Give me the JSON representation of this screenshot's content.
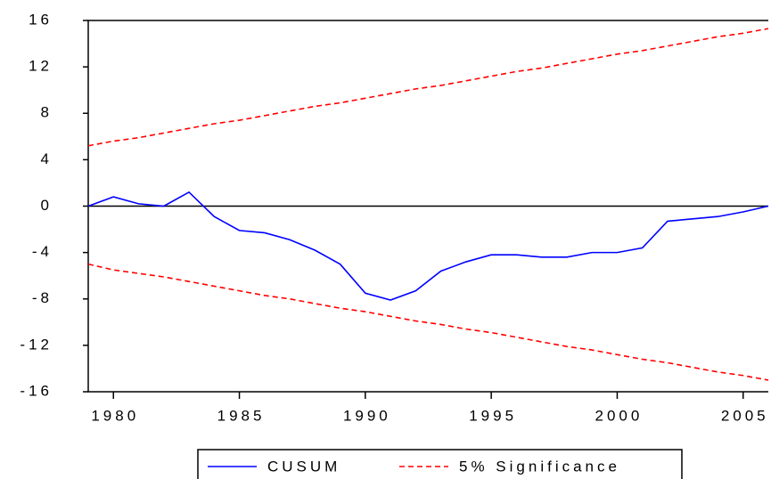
{
  "chart_data": {
    "type": "line",
    "x": [
      1979,
      1980,
      1981,
      1982,
      1983,
      1984,
      1985,
      1986,
      1987,
      1988,
      1989,
      1990,
      1991,
      1992,
      1993,
      1994,
      1995,
      1996,
      1997,
      1998,
      1999,
      2000,
      2001,
      2002,
      2003,
      2004,
      2005,
      2006
    ],
    "series": [
      {
        "name": "CUSUM",
        "color": "#0000ff",
        "dashed": false,
        "values": [
          0,
          0.8,
          0.2,
          0,
          1.2,
          -0.9,
          -2.1,
          -2.3,
          -2.9,
          -3.8,
          -5.0,
          -7.5,
          -8.1,
          -7.3,
          -5.6,
          -4.8,
          -4.2,
          -4.2,
          -4.4,
          -4.4,
          -4.0,
          -4.0,
          -3.6,
          -1.3,
          -1.1,
          -0.9,
          -0.5,
          0
        ]
      },
      {
        "name": "5% Significance",
        "color": "#ff0000",
        "dashed": true,
        "values": [
          5.2,
          5.6,
          5.9,
          6.3,
          6.7,
          7.1,
          7.4,
          7.8,
          8.2,
          8.6,
          8.9,
          9.3,
          9.7,
          10.1,
          10.4,
          10.8,
          11.2,
          11.6,
          11.9,
          12.3,
          12.7,
          13.1,
          13.4,
          13.8,
          14.2,
          14.6,
          14.9,
          15.3
        ],
        "lower": [
          -5.0,
          -5.5,
          -5.8,
          -6.1,
          -6.5,
          -6.9,
          -7.3,
          -7.7,
          -8.0,
          -8.4,
          -8.8,
          -9.1,
          -9.5,
          -9.9,
          -10.2,
          -10.6,
          -10.9,
          -11.3,
          -11.7,
          -12.1,
          -12.4,
          -12.8,
          -13.2,
          -13.5,
          -13.9,
          -14.3,
          -14.6,
          -15.0
        ]
      }
    ],
    "xlim": [
      1979,
      2006
    ],
    "xticks": [
      1980,
      1985,
      1990,
      1995,
      2000,
      2005
    ],
    "ylim": [
      -16,
      16
    ],
    "yticks": [
      -16,
      -12,
      -8,
      -4,
      0,
      4,
      8,
      12,
      16
    ],
    "zero_line": true
  }
}
